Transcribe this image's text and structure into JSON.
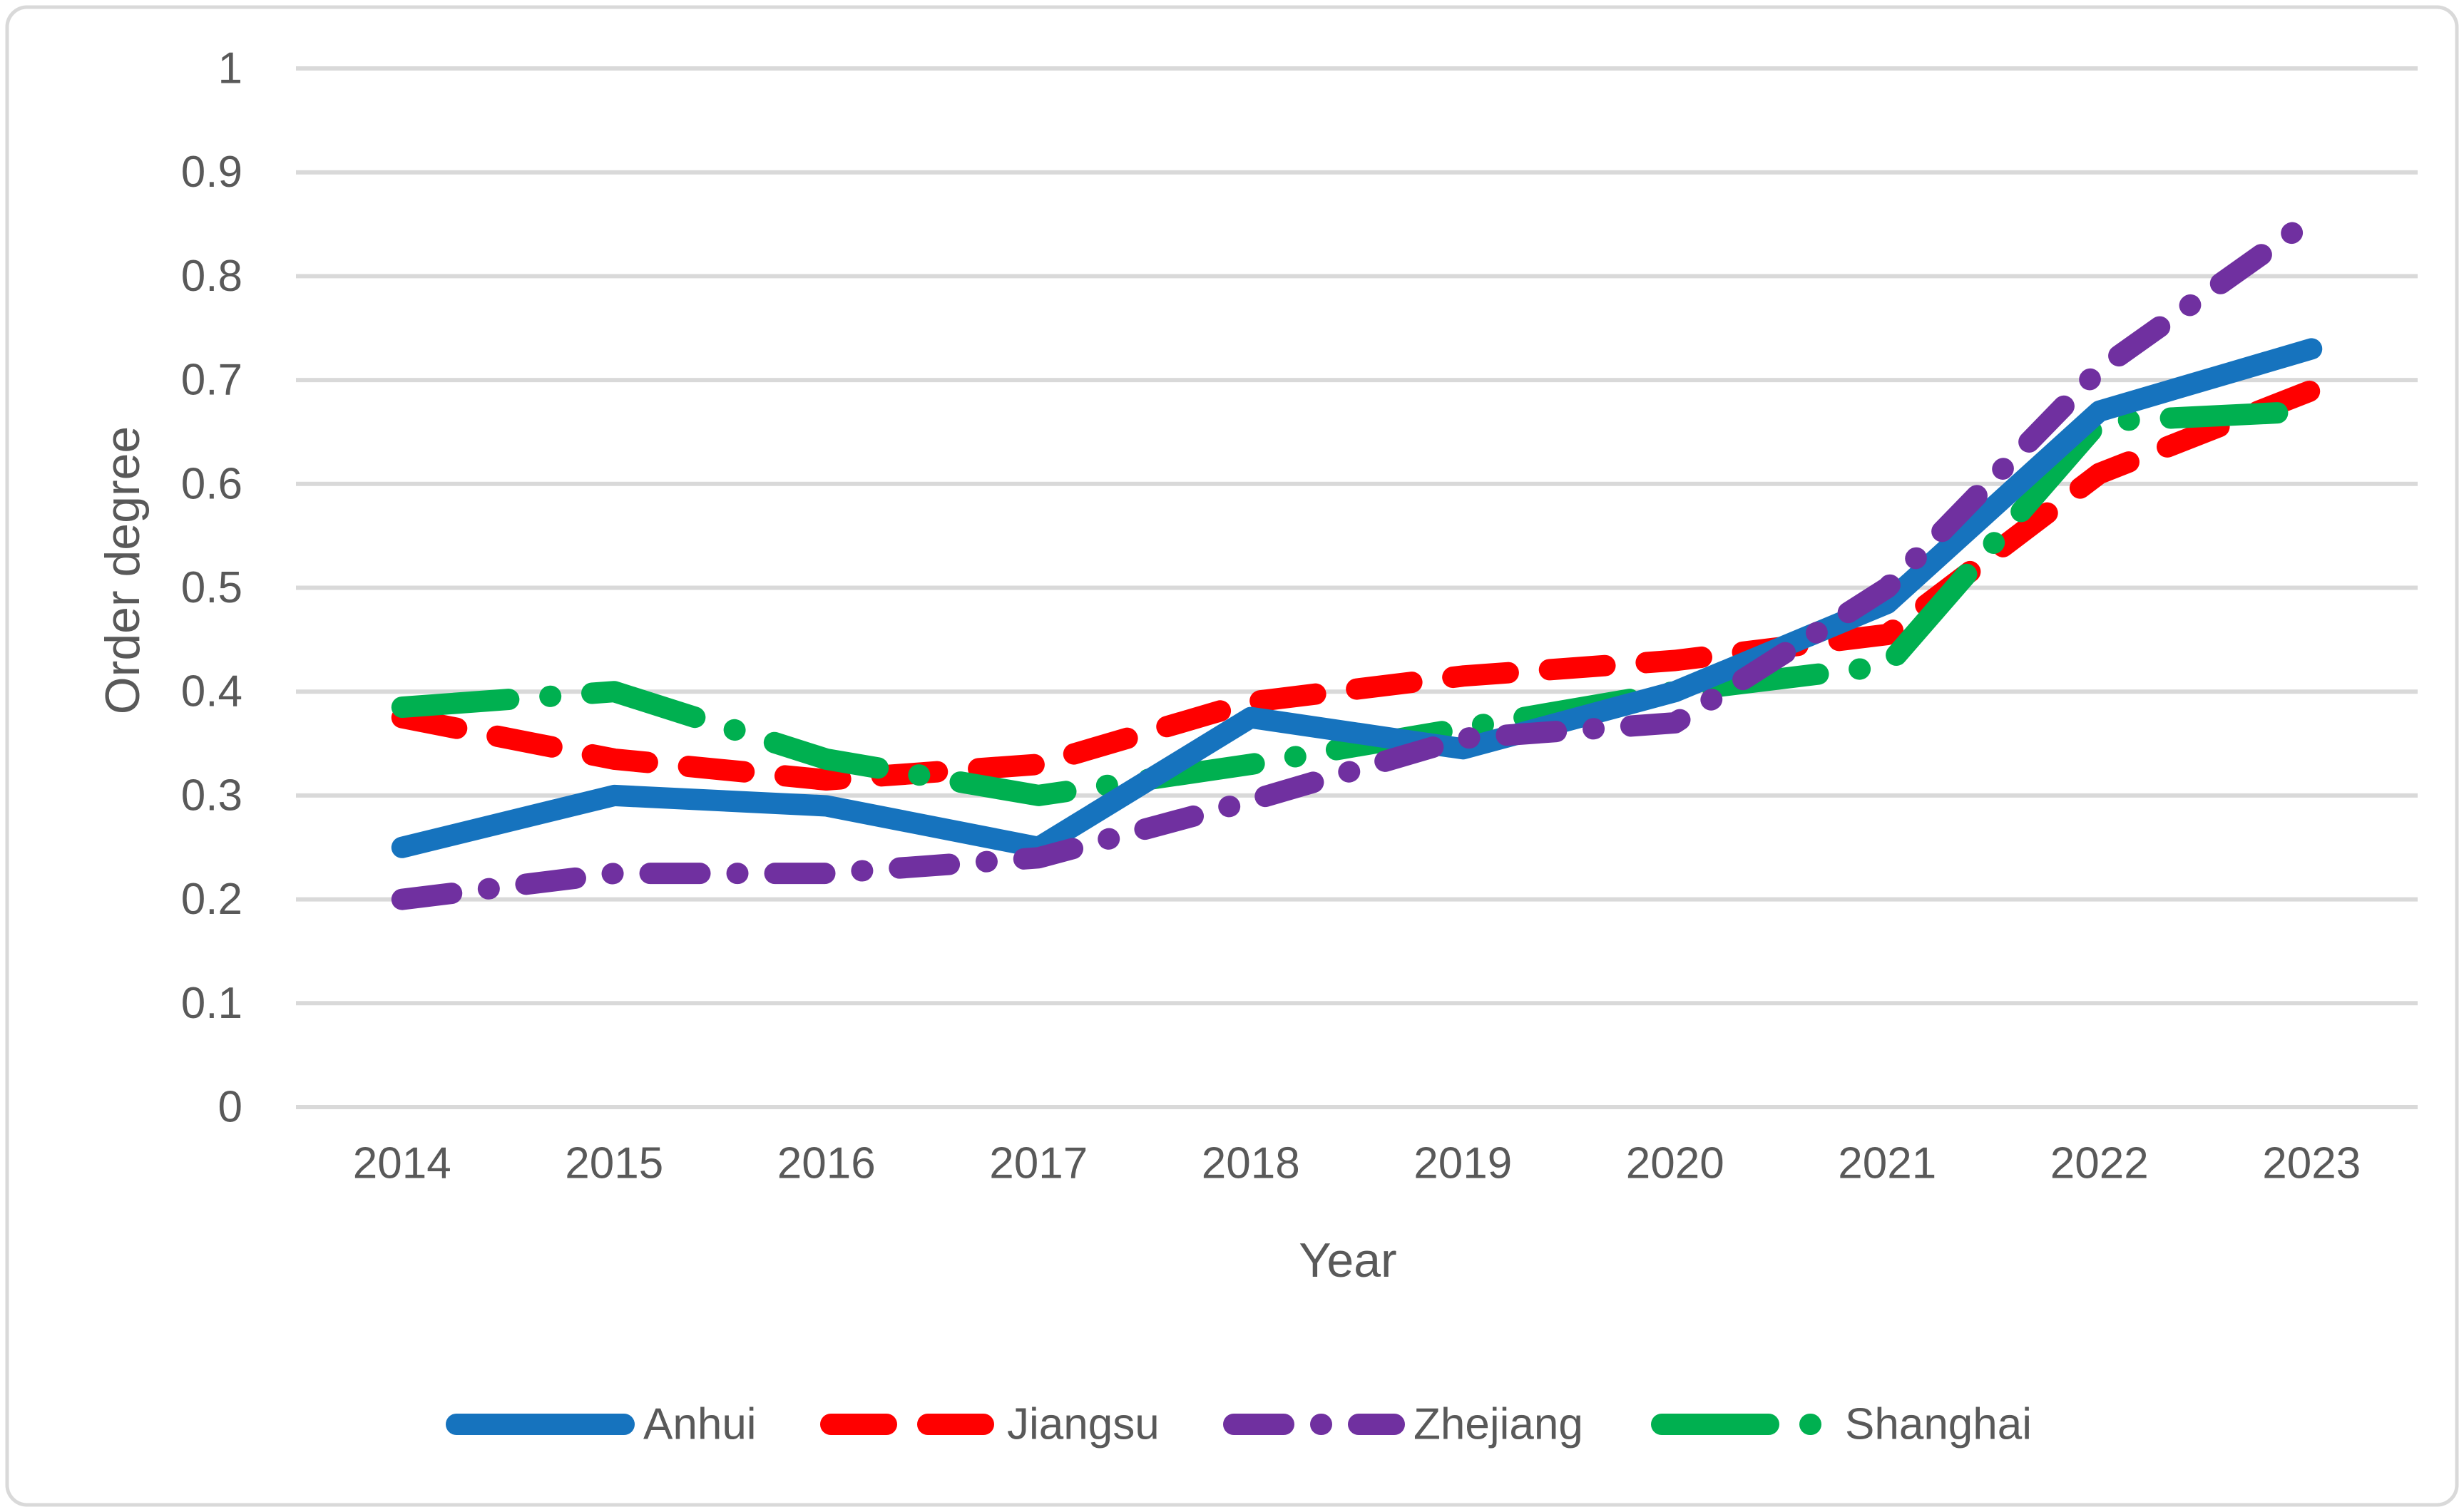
{
  "figure": {
    "background": "#ffffff",
    "border_color": "#D9D9D9",
    "text_color": "#595959",
    "gridline_color": "#D9D9D9"
  },
  "chart_data": {
    "type": "line",
    "title": "",
    "xlabel": "Year",
    "ylabel": "Order degree",
    "categories": [
      "2014",
      "2015",
      "2016",
      "2017",
      "2018",
      "2019",
      "2020",
      "2021",
      "2022",
      "2023"
    ],
    "ytick_labels": [
      "0",
      "0.1",
      "0.2",
      "0.3",
      "0.4",
      "0.5",
      "0.6",
      "0.7",
      "0.8",
      "0.9",
      "1"
    ],
    "ylim": [
      0,
      1
    ],
    "grid": "horizontal",
    "legend_position": "bottom",
    "series": [
      {
        "name": "Anhui",
        "color": "#1673BE",
        "style": "solid",
        "values": [
          0.25,
          0.3,
          0.29,
          0.25,
          0.375,
          0.345,
          0.4,
          0.485,
          0.67,
          0.73
        ]
      },
      {
        "name": "Jiangsu",
        "color": "#FF0000",
        "style": "dashed",
        "values": [
          0.375,
          0.335,
          0.315,
          0.33,
          0.39,
          0.415,
          0.43,
          0.455,
          0.61,
          0.69
        ]
      },
      {
        "name": "Zhejiang",
        "color": "#7030A0",
        "style": "dash-dot",
        "values": [
          0.2,
          0.225,
          0.225,
          0.24,
          0.295,
          0.355,
          0.37,
          0.5,
          0.71,
          0.855
        ]
      },
      {
        "name": "Shanghai",
        "color": "#00B050",
        "style": "long-dash-dot",
        "values": [
          0.385,
          0.4,
          0.335,
          0.3,
          0.33,
          0.365,
          0.4,
          0.425,
          0.66,
          0.67
        ]
      }
    ]
  }
}
